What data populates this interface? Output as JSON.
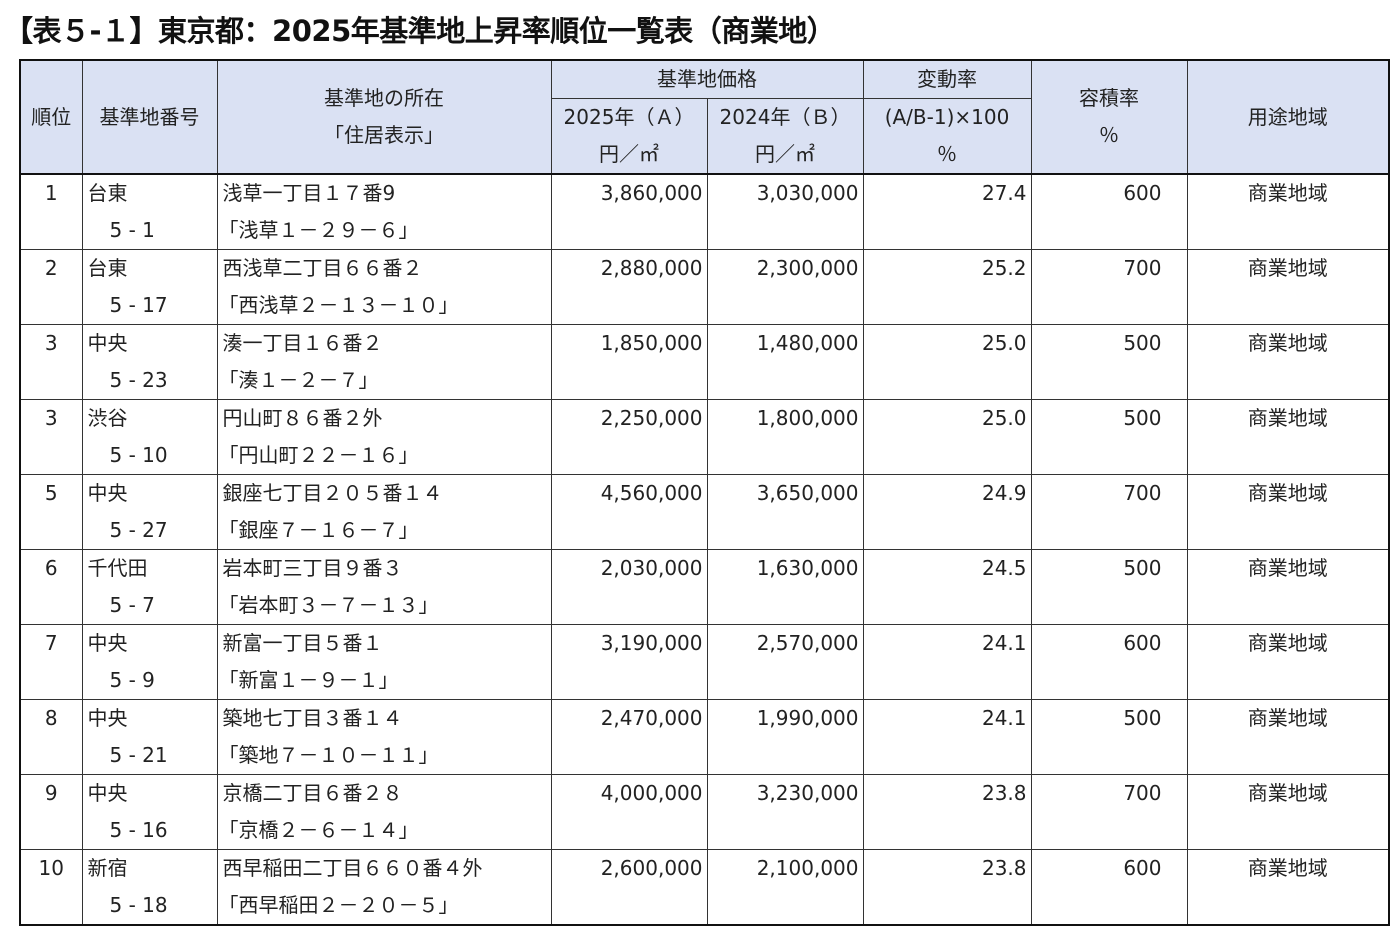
{
  "title": "【表５-１】東京都：2025年基準地上昇率順位一覧表（商業地）",
  "header": {
    "rank": "順位",
    "number": "基準地番号",
    "location_line1": "基準地の所在",
    "location_line2": "「住居表示」",
    "price_group": "基準地価格",
    "price_a": "2025年（Ａ）",
    "price_b": "2024年（Ｂ）",
    "unit": "円／㎡",
    "change_group": "変動率",
    "change_formula": "(A/B-1)×100",
    "change_unit": "％",
    "far": "容積率",
    "far_unit": "％",
    "zoning": "用途地域"
  },
  "rows": [
    {
      "rank": "1",
      "ward": "台東",
      "num": "5 - 1",
      "addr": "浅草一丁目１７番9",
      "disp": "「浅草１－２９－６」",
      "a": "3,860,000",
      "b": "3,030,000",
      "change": "27.4",
      "far": "600",
      "zone": "商業地域"
    },
    {
      "rank": "2",
      "ward": "台東",
      "num": "5 - 17",
      "addr": "西浅草二丁目６６番２",
      "disp": "「西浅草２－１３－１０」",
      "a": "2,880,000",
      "b": "2,300,000",
      "change": "25.2",
      "far": "700",
      "zone": "商業地域"
    },
    {
      "rank": "3",
      "ward": "中央",
      "num": "5 - 23",
      "addr": "湊一丁目１６番２",
      "disp": "「湊１－２－７」",
      "a": "1,850,000",
      "b": "1,480,000",
      "change": "25.0",
      "far": "500",
      "zone": "商業地域"
    },
    {
      "rank": "3",
      "ward": "渋谷",
      "num": "5 - 10",
      "addr": "円山町８６番２外",
      "disp": "「円山町２２－１６」",
      "a": "2,250,000",
      "b": "1,800,000",
      "change": "25.0",
      "far": "500",
      "zone": "商業地域"
    },
    {
      "rank": "5",
      "ward": "中央",
      "num": "5 - 27",
      "addr": "銀座七丁目２０５番１４",
      "disp": "「銀座７－１６－７」",
      "a": "4,560,000",
      "b": "3,650,000",
      "change": "24.9",
      "far": "700",
      "zone": "商業地域"
    },
    {
      "rank": "6",
      "ward": "千代田",
      "num": "5 - 7",
      "addr": "岩本町三丁目９番３",
      "disp": "「岩本町３－７－１３」",
      "a": "2,030,000",
      "b": "1,630,000",
      "change": "24.5",
      "far": "500",
      "zone": "商業地域"
    },
    {
      "rank": "7",
      "ward": "中央",
      "num": "5 - 9",
      "addr": "新富一丁目５番１",
      "disp": "「新富１－９－１」",
      "a": "3,190,000",
      "b": "2,570,000",
      "change": "24.1",
      "far": "600",
      "zone": "商業地域"
    },
    {
      "rank": "8",
      "ward": "中央",
      "num": "5 - 21",
      "addr": "築地七丁目３番１４",
      "disp": "「築地７－１０－１１」",
      "a": "2,470,000",
      "b": "1,990,000",
      "change": "24.1",
      "far": "500",
      "zone": "商業地域"
    },
    {
      "rank": "9",
      "ward": "中央",
      "num": "5 - 16",
      "addr": "京橋二丁目６番２８",
      "disp": "「京橋２－６－１４」",
      "a": "4,000,000",
      "b": "3,230,000",
      "change": "23.8",
      "far": "700",
      "zone": "商業地域"
    },
    {
      "rank": "10",
      "ward": "新宿",
      "num": "5 - 18",
      "addr": "西早稲田二丁目６６０番４外",
      "disp": "「西早稲田２－２０－５」",
      "a": "2,600,000",
      "b": "2,100,000",
      "change": "23.8",
      "far": "600",
      "zone": "商業地域"
    }
  ]
}
